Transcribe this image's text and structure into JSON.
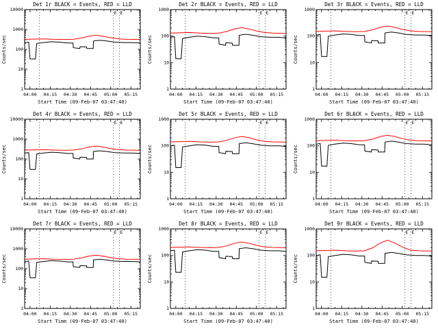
{
  "chart_data": {
    "type": "line",
    "xlabel": "Start Time (09-Feb-07 03:47:40)",
    "ylabel": "Counts/sec",
    "x_tick_labels": [
      "04:00",
      "04:15",
      "04:30",
      "04:45",
      "05:00",
      "05:15"
    ],
    "x_tick_minutes": [
      240,
      255,
      270,
      285,
      300,
      315
    ],
    "xlim": [
      236,
      322
    ],
    "y_tick_labels": [
      "1",
      "10",
      "100",
      "1000",
      "10000"
    ],
    "grid": "off",
    "legend": "in-title",
    "markers": [
      {
        "x": 247,
        "label": ""
      },
      {
        "x": 302,
        "label": "E"
      },
      {
        "x": 306.5,
        "label": "E"
      }
    ],
    "x_events": [
      236,
      239,
      240,
      244,
      245,
      250,
      256,
      262,
      268,
      272,
      272.2,
      277,
      277.2,
      282,
      282.2,
      287,
      287.2,
      292,
      297,
      303,
      310,
      316,
      322
    ],
    "x_lld": [
      236,
      242,
      250,
      258,
      266,
      272,
      278,
      284,
      289,
      294,
      300,
      306,
      312,
      322
    ],
    "panels": [
      {
        "id": "det-1r",
        "title": "Det 1r BLACK = Events, RED = LLD",
        "y_decades": 4,
        "series": [
          {
            "name": "Events",
            "color": "#000000",
            "values": [
              220,
              231,
              33,
              33,
              198,
              220,
              242,
              231,
              209,
              209,
              121,
              110,
              136,
              132,
              110,
              110,
              264,
              286,
              264,
              231,
              220,
              220,
              209
            ]
          },
          {
            "name": "LLD",
            "color": "#ff0000",
            "values": [
              320,
              326,
              336,
              320,
              314,
              320,
              368,
              464,
              512,
              464,
              384,
              336,
              320,
              314
            ]
          }
        ]
      },
      {
        "id": "det-2r",
        "title": "Det 2r BLACK = Events, RED = LLD",
        "y_decades": 3,
        "series": [
          {
            "name": "Events",
            "color": "#000000",
            "values": [
              90,
              95,
              14,
              14,
              81,
              90,
              99,
              95,
              86,
              86,
              50,
              45,
              56,
              54,
              45,
              45,
              108,
              117,
              108,
              95,
              90,
              90,
              86
            ]
          },
          {
            "name": "LLD",
            "color": "#ff0000",
            "values": [
              130,
              133,
              137,
              130,
              127,
              130,
              150,
              189,
              208,
              189,
              156,
              137,
              130,
              127
            ]
          }
        ]
      },
      {
        "id": "det-3r",
        "title": "Det 3r BLACK = Events, RED = LLD",
        "y_decades": 3,
        "series": [
          {
            "name": "Events",
            "color": "#000000",
            "values": [
              110,
              116,
              17,
              17,
              99,
              110,
              121,
              116,
              105,
              105,
              61,
              55,
              68,
              66,
              55,
              55,
              132,
              143,
              132,
              116,
              110,
              110,
              105
            ]
          },
          {
            "name": "LLD",
            "color": "#ff0000",
            "values": [
              150,
              153,
              158,
              150,
              147,
              150,
              173,
              218,
              240,
              218,
              180,
              158,
              150,
              147
            ]
          }
        ]
      },
      {
        "id": "det-4r",
        "title": "Det 4r BLACK = Events, RED = LLD",
        "y_decades": 4,
        "series": [
          {
            "name": "Events",
            "color": "#000000",
            "values": [
              200,
              210,
              30,
              30,
              180,
              200,
              220,
              210,
              190,
              190,
              110,
              100,
              124,
              120,
              100,
              100,
              240,
              260,
              240,
              210,
              200,
              200,
              190
            ]
          },
          {
            "name": "LLD",
            "color": "#ff0000",
            "values": [
              280,
              286,
              294,
              280,
              274,
              280,
              322,
              406,
              448,
              406,
              336,
              294,
              280,
              274
            ]
          }
        ]
      },
      {
        "id": "det-5r",
        "title": "Det 5r BLACK = Events, RED = LLD",
        "y_decades": 3,
        "series": [
          {
            "name": "Events",
            "color": "#000000",
            "values": [
              100,
              105,
              15,
              15,
              90,
              100,
              110,
              105,
              95,
              95,
              55,
              50,
              62,
              60,
              50,
              50,
              120,
              130,
              120,
              105,
              100,
              100,
              95
            ]
          },
          {
            "name": "LLD",
            "color": "#ff0000",
            "values": [
              140,
              143,
              147,
              140,
              137,
              140,
              161,
              203,
              224,
              203,
              168,
              147,
              140,
              137
            ]
          }
        ]
      },
      {
        "id": "det-6r",
        "title": "Det 6r BLACK = Events, RED = LLD",
        "y_decades": 3,
        "series": [
          {
            "name": "Events",
            "color": "#000000",
            "values": [
              115,
              121,
              17,
              17,
              104,
              115,
              127,
              121,
              109,
              109,
              63,
              58,
              71,
              69,
              58,
              58,
              138,
              150,
              138,
              121,
              115,
              115,
              109
            ]
          },
          {
            "name": "LLD",
            "color": "#ff0000",
            "values": [
              155,
              158,
              163,
              155,
              152,
              155,
              178,
              225,
              248,
              225,
              186,
              163,
              155,
              152
            ]
          }
        ]
      },
      {
        "id": "det-7r",
        "title": "Det 7r BLACK = Events, RED = LLD",
        "y_decades": 4,
        "series": [
          {
            "name": "Events",
            "color": "#000000",
            "values": [
              230,
              242,
              35,
              35,
              207,
              230,
              253,
              242,
              219,
              219,
              127,
              115,
              143,
              138,
              115,
              115,
              276,
              299,
              276,
              242,
              230,
              230,
              219
            ]
          },
          {
            "name": "LLD",
            "color": "#ff0000",
            "values": [
              300,
              306,
              315,
              300,
              294,
              300,
              345,
              435,
              480,
              435,
              360,
              315,
              300,
              294
            ]
          }
        ]
      },
      {
        "id": "det-8r",
        "title": "Det 8r BLACK = Events, RED = LLD",
        "y_decades": 3,
        "series": [
          {
            "name": "Events",
            "color": "#000000",
            "values": [
              150,
              158,
              23,
              23,
              135,
              150,
              165,
              158,
              143,
              143,
              83,
              75,
              93,
              90,
              75,
              75,
              180,
              195,
              180,
              158,
              150,
              150,
              143
            ]
          },
          {
            "name": "LLD",
            "color": "#ff0000",
            "values": [
              200,
              204,
              210,
              200,
              196,
              200,
              230,
              290,
              320,
              290,
              240,
              210,
              200,
              196
            ]
          }
        ]
      },
      {
        "id": "det-9r",
        "title": "Det 9r BLACK = Events, RED = LLD",
        "y_decades": 3,
        "series": [
          {
            "name": "Events",
            "color": "#000000",
            "values": [
              100,
              105,
              15,
              15,
              90,
              100,
              110,
              105,
              95,
              95,
              55,
              50,
              62,
              60,
              50,
              50,
              120,
              130,
              120,
              105,
              100,
              100,
              95
            ]
          },
          {
            "name": "LLD",
            "color": "#ff0000",
            "values": [
              150,
              153,
              158,
              150,
              147,
              150,
              195,
              300,
              375,
              300,
              210,
              158,
              150,
              147
            ]
          }
        ]
      }
    ]
  }
}
